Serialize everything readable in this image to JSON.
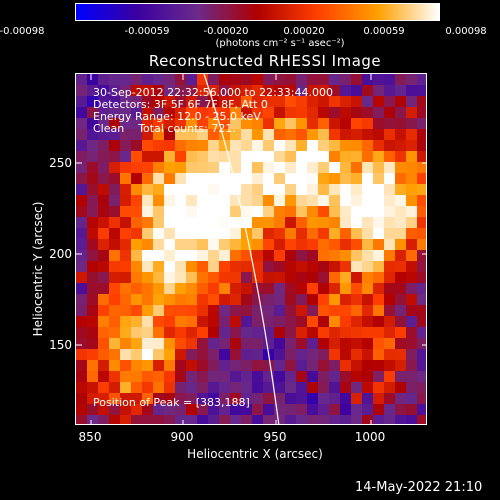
{
  "colorbar": {
    "ticks": [
      "-0.00098",
      "-0.00059",
      "-0.00020",
      "0.00020",
      "0.00059",
      "0.00098"
    ],
    "units": "(photons cm⁻² s⁻¹ asec⁻²)"
  },
  "title": "Reconstructed RHESSI Image",
  "info": {
    "time": "30-Sep-2012 22:32:56.000 to 22:33:44.000",
    "detectors": "Detectors: 3F 5F 6F 7F 8F, Att 0",
    "energy": "Energy Range: 12.0 - 25.0 keV",
    "clean": "Clean    Total counts: 721.",
    "peak": "Position of Peak = [383,188]"
  },
  "axes": {
    "xlabel": "Heliocentric X (arcsec)",
    "ylabel": "Heliocentric Y (arcsec)",
    "xticks": [
      "850",
      "900",
      "950",
      "1000"
    ],
    "yticks": [
      "250",
      "200",
      "150"
    ]
  },
  "timestamp": "14-May-2022 21:10",
  "colors": {
    "colormap": [
      "#0000ff",
      "#3a00a0",
      "#6a2a8a",
      "#b00000",
      "#ff4000",
      "#ffa000",
      "#ffffff"
    ],
    "limb_line": "#ffffff"
  }
}
